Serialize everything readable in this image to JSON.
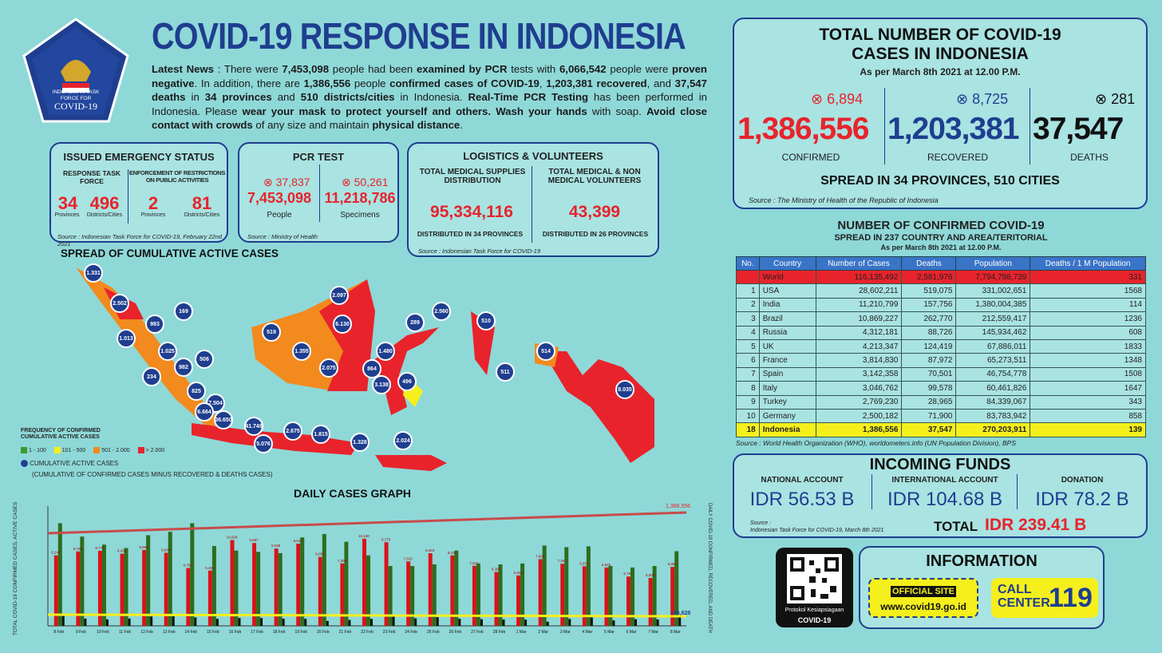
{
  "header": {
    "title": "COVID-19 RESPONSE IN INDONESIA",
    "logo_text": [
      "INDONESIAN TASK",
      "FORCE FOR",
      "COVID-19"
    ],
    "news": [
      [
        "Latest News",
        true
      ],
      [
        " : There were ",
        false
      ],
      [
        "7,453,098",
        true
      ],
      [
        " people had been ",
        false
      ],
      [
        "examined by PCR",
        true
      ],
      [
        " tests with ",
        false
      ],
      [
        "6,066,542",
        true
      ],
      [
        " people were ",
        false
      ],
      [
        "proven negative",
        true
      ],
      [
        ". In addition, there are ",
        false
      ],
      [
        "1,386,556",
        true
      ],
      [
        " people ",
        false
      ],
      [
        "confirmed cases of COVID-19",
        true
      ],
      [
        ", ",
        false
      ],
      [
        "1,203,381 recovered",
        true
      ],
      [
        ", and ",
        false
      ],
      [
        "37,547 deaths",
        true
      ],
      [
        " in ",
        false
      ],
      [
        "34 provinces",
        true
      ],
      [
        " and ",
        false
      ],
      [
        "510 districts/cities",
        true
      ],
      [
        " in Indonesia. ",
        false
      ],
      [
        "Real-Time PCR Testing",
        true
      ],
      [
        " has been performed in Indonesia. Please ",
        false
      ],
      [
        "wear your mask to protect yourself and others. Wash your hands",
        true
      ],
      [
        " with soap. ",
        false
      ],
      [
        "Avoid close contact with crowds",
        true
      ],
      [
        " of any size and maintain ",
        false
      ],
      [
        "physical distance",
        true
      ],
      [
        ".",
        false
      ]
    ]
  },
  "emergency": {
    "title": "ISSUED EMERGENCY STATUS",
    "col1": "RESPONSE TASK FORCE",
    "col2": "ENFORCEMENT OF RESTRICTIONS ON PUBLIC ACTIVITIES",
    "v1": "34",
    "l1": "Provinces",
    "v2": "496",
    "l2": "Districts/Cities",
    "v3": "2",
    "l3": "Provinces",
    "v4": "81",
    "l4": "Districts/Cities",
    "source": "Source : Indonesian Task Force for COVID-19, February 22nd 2021"
  },
  "pcr": {
    "title": "PCR TEST",
    "inc1": "37,837",
    "inc2": "50,261",
    "people": "7,453,098",
    "people_label": "People",
    "spec": "11,218,786",
    "spec_label": "Specimens",
    "source": "Source : Ministry of Health"
  },
  "logistics": {
    "title": "LOGISTICS & VOLUNTEERS",
    "l1": "TOTAL MEDICAL SUPPLIES DISTRIBUTION",
    "v1": "95,334,116",
    "d1": "DISTRIBUTED IN 34 PROVINCES",
    "l2": "TOTAL MEDICAL & NON MEDICAL VOLUNTEERS",
    "v2": "43,399",
    "d2": "DISTRIBUTED IN 26 PROVINCES",
    "source": "Source : Indonesian Task Force for COVID-19"
  },
  "total": {
    "title1": "TOTAL NUMBER OF COVID-19",
    "title2": "CASES IN INDONESIA",
    "asof": "As per March 8th 2021 at 12.00 P.M.",
    "inc_conf": "6,894",
    "inc_rec": "8,725",
    "inc_death": "281",
    "confirmed": "1,386,556",
    "recovered": "1,203,381",
    "deaths": "37,547",
    "l_conf": "CONFIRMED",
    "l_rec": "RECOVERED",
    "l_death": "DEATHS",
    "spread": "SPREAD IN 34 PROVINCES, 510 CITIES",
    "source": "Source : The Ministry of Health of the Republic of Indonesia"
  },
  "world": {
    "t1": "NUMBER OF CONFIRMED COVID-19",
    "t2": "SPREAD IN 237 COUNTRY AND AREA/TERITORIAL",
    "t3": "As per March 8th 2021 at 12.00 P.M.",
    "headers": [
      "No.",
      "Country",
      "Number of Cases",
      "Deaths",
      "Population",
      "Deaths / 1 M Population"
    ],
    "rows": [
      [
        "",
        "World",
        "116,135,492",
        "2,581,976",
        "7,794,798,739",
        "331"
      ],
      [
        "1",
        "USA",
        "28,602,211",
        "519,075",
        "331,002,651",
        "1568"
      ],
      [
        "2",
        "India",
        "11,210,799",
        "157,756",
        "1,380,004,385",
        "114"
      ],
      [
        "3",
        "Brazil",
        "10,869,227",
        "262,770",
        "212,559,417",
        "1236"
      ],
      [
        "4",
        "Russia",
        "4,312,181",
        "88,726",
        "145,934,462",
        "608"
      ],
      [
        "5",
        "UK",
        "4,213,347",
        "124,419",
        "67,886,011",
        "1833"
      ],
      [
        "6",
        "France",
        "3,814,830",
        "87,972",
        "65,273,511",
        "1348"
      ],
      [
        "7",
        "Spain",
        "3,142,358",
        "70,501",
        "46,754,778",
        "1508"
      ],
      [
        "8",
        "Italy",
        "3,046,762",
        "99,578",
        "60,461,826",
        "1647"
      ],
      [
        "9",
        "Turkey",
        "2,769,230",
        "28,965",
        "84,339,067",
        "343"
      ],
      [
        "10",
        "Germany",
        "2,500,182",
        "71,900",
        "83,783,942",
        "858"
      ],
      [
        "18",
        "Indonesia",
        "1,386,556",
        "37,547",
        "270,203,911",
        "139"
      ]
    ],
    "source": "Source : World Health Organization (WHO), worldometers.info (UN Population Division), BPS"
  },
  "funds": {
    "title": "INCOMING FUNDS",
    "a1": "NATIONAL ACCOUNT",
    "v1": "IDR 56.53 B",
    "a2": "INTERNATIONAL ACCOUNT",
    "v2": "IDR 104.68 B",
    "a3": "DONATION",
    "v3": "IDR 78.2 B",
    "source1": "Source :",
    "source2": "Indonesian Task Force for COVID-19, March 8th 2021",
    "total_label": "TOTAL",
    "total": "IDR 239.41 B"
  },
  "info": {
    "title": "INFORMATION",
    "qr1": "Protokol Kesiapsiagaan",
    "qr2": "COVID-19",
    "official": "OFFICIAL SITE",
    "site": "www.covid19.go.id",
    "call1": "CALL",
    "call2": "CENTER",
    "num": "119"
  },
  "map": {
    "title": "SPREAD OF CUMULATIVE ACTIVE CASES",
    "legend_title": "FREQUENCY OF CONFIRMED CUMULATIVE ACTIVE CASES",
    "legend": [
      [
        "1 - 100",
        "#3a9a2e"
      ],
      [
        "101 - 500",
        "#f5ef1c"
      ],
      [
        "501 - 2.000",
        "#f28a1e"
      ],
      [
        "> 2.000",
        "#e8232b"
      ]
    ],
    "circle_label": "CUMULATIVE ACTIVE CASES",
    "circle_sub": "(CUMULATIVE OF CONFIRMED CASES MINUS RECOVERED & DEATHS CASES)",
    "dots": [
      "1.331",
      "2.502",
      "983",
      "169",
      "1.013",
      "1.025",
      "982",
      "506",
      "234",
      "825",
      "7.504",
      "6.664",
      "36.650",
      "41.749",
      "5.076",
      "2.675",
      "1.815",
      "1.328",
      "2.024",
      "519",
      "1.355",
      "2.097",
      "6.130",
      "2.075",
      "1.480",
      "864",
      "3.138",
      "496",
      "289",
      "2.560",
      "510",
      "514",
      "511",
      "8.035"
    ]
  },
  "graph": {
    "title": "DAILY CASES GRAPH",
    "ylabel": "TOTAL COVID-19 CONFIRMED CASES, ACTIVE CASES",
    "ylabel2": "DAILY COVID-19 CONFIRMED, RECOVERED, AND DEATH",
    "top_label": "1,386,556",
    "active_label": "145,628"
  },
  "chart_data": {
    "type": "bar",
    "title": "DAILY CASES GRAPH",
    "x": [
      "8 Feb",
      "9 Feb",
      "10 Feb",
      "11 Feb",
      "12 Feb",
      "13 Feb",
      "14 Feb",
      "15 Feb",
      "16 Feb",
      "17 Feb",
      "18 Feb",
      "19 Feb",
      "20 Feb",
      "21 Feb",
      "22 Feb",
      "23 Feb",
      "24 Feb",
      "25 Feb",
      "26 Feb",
      "27 Feb",
      "28 Feb",
      "1 Mar",
      "2 Mar",
      "3 Mar",
      "4 Mar",
      "5 Mar",
      "6 Mar",
      "7 Mar",
      "8 Mar"
    ],
    "series": [
      {
        "name": "Daily Confirmed Cases of COVID-19",
        "values": [
          8242,
          8700,
          8776,
          8435,
          8869,
          8544,
          6765,
          6462,
          10029,
          9687,
          9039,
          9614,
          8054,
          7300,
          10180,
          9775,
          7533,
          8493,
          8232,
          7021,
          6300,
          5900,
          7800,
          7264,
          6971,
          6825,
          5767,
          5600,
          6894
        ]
      },
      {
        "name": "Recovered",
        "values": [
          12000,
          10434,
          9500,
          9100,
          10600,
          11000,
          12000,
          9337,
          8800,
          8650,
          8500,
          10344,
          10741,
          9835,
          8236,
          7000,
          7000,
          7190,
          8800,
          7300,
          7190,
          7295,
          9400,
          9200,
          9300,
          7000,
          6823,
          7000,
          8725
        ]
      },
      {
        "name": "Deaths",
        "values": [
          287,
          211,
          191,
          214,
          275,
          280,
          247,
          205,
          229,
          229,
          209,
          205,
          144,
          173,
          202,
          323,
          220,
          254,
          206,
          195,
          185,
          183,
          122,
          201,
          249,
          159,
          195,
          187,
          281
        ]
      }
    ]
  }
}
